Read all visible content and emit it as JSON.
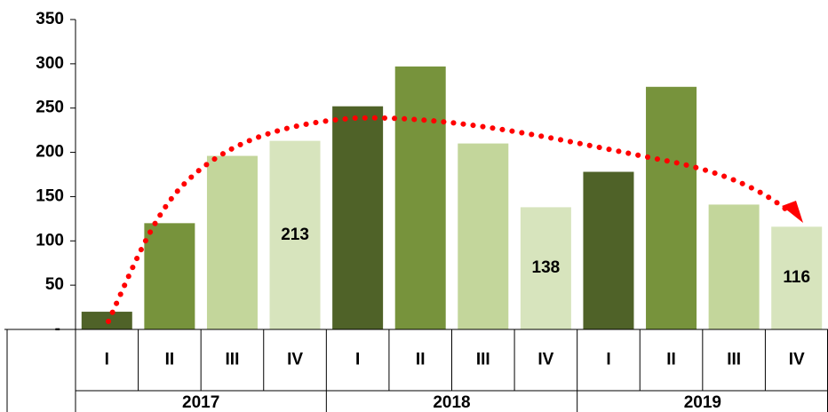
{
  "chart_data": {
    "type": "bar",
    "categories": [
      "I",
      "II",
      "III",
      "IV",
      "I",
      "II",
      "III",
      "IV",
      "I",
      "II",
      "III",
      "IV"
    ],
    "groups": [
      "2017",
      "2018",
      "2019"
    ],
    "values": [
      20,
      120,
      196,
      213,
      252,
      297,
      210,
      138,
      178,
      274,
      141,
      116
    ],
    "colors": [
      "#4f6228",
      "#77933c",
      "#c3d69b",
      "#d7e4bd",
      "#4f6228",
      "#77933c",
      "#c3d69b",
      "#d7e4bd",
      "#4f6228",
      "#77933c",
      "#c3d69b",
      "#d7e4bd"
    ],
    "show_labels": [
      false,
      false,
      false,
      true,
      false,
      false,
      false,
      true,
      false,
      false,
      false,
      true
    ],
    "ylim": [
      0,
      350
    ],
    "yticks": [
      {
        "value": 0,
        "label": "-"
      },
      50,
      100,
      150,
      200,
      250,
      300,
      350
    ],
    "grid": false
  }
}
